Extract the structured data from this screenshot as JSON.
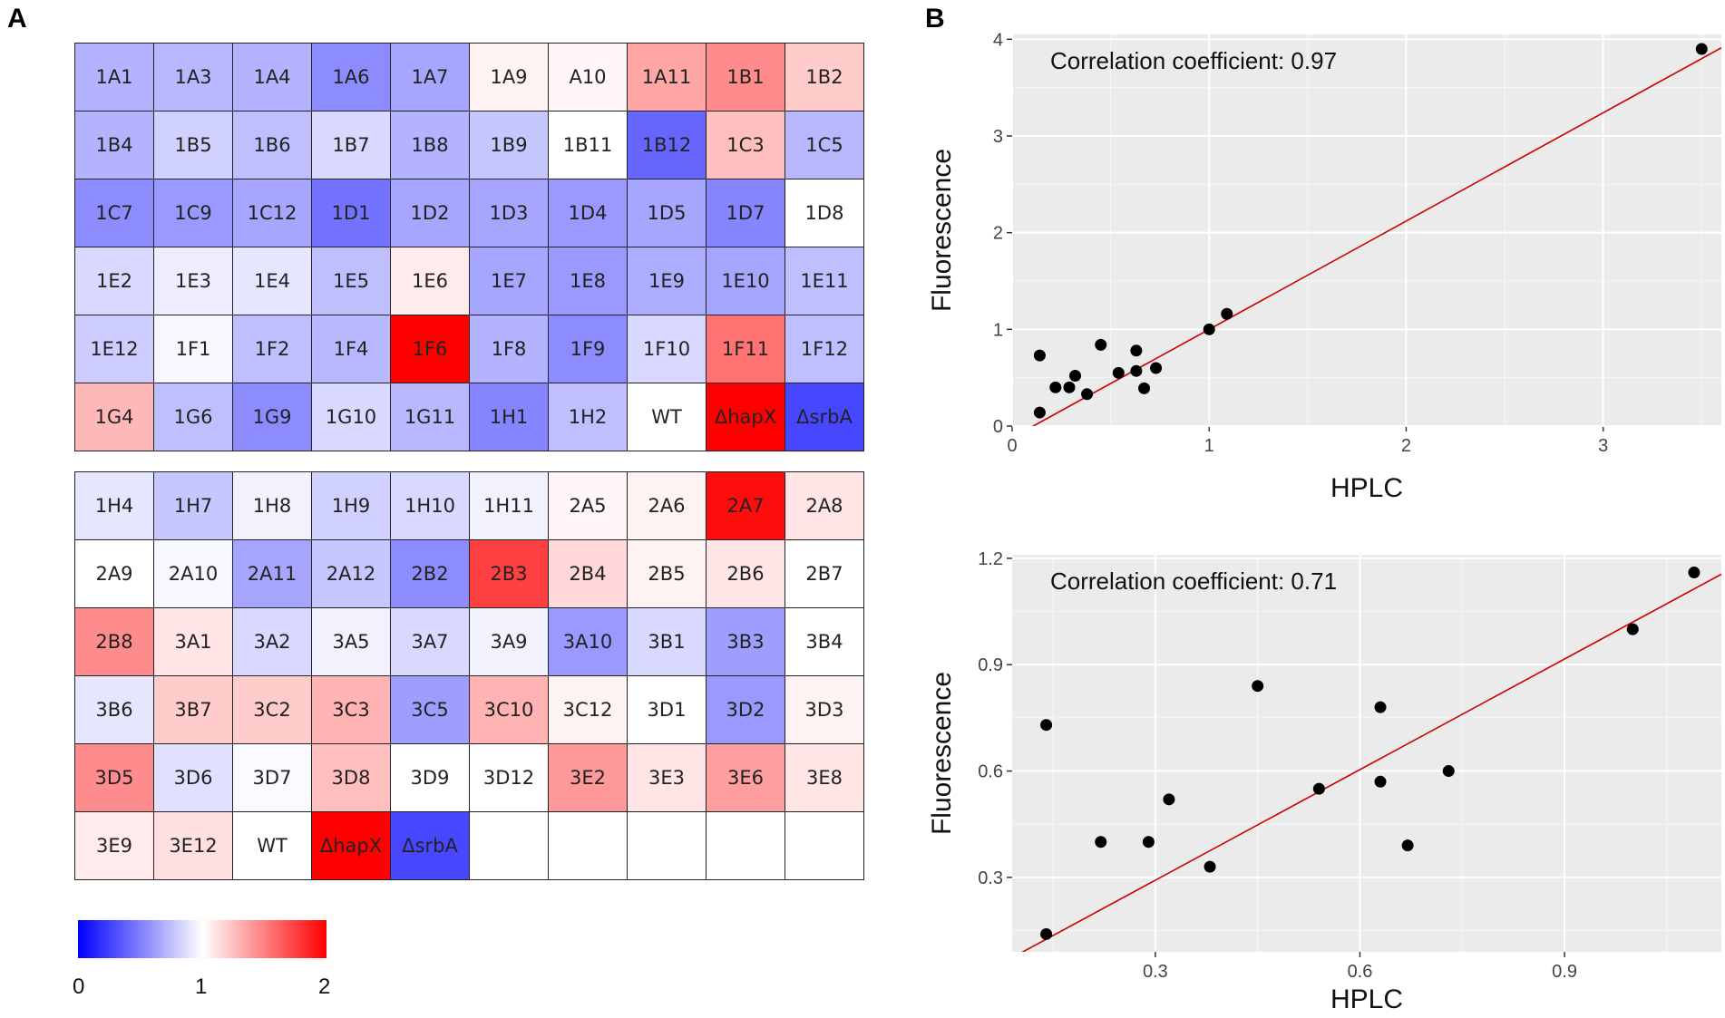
{
  "panel_labels": {
    "a": "A",
    "b": "B"
  },
  "colorscale": {
    "low": "#0000ff",
    "mid": "#ffffff",
    "high": "#ff0000",
    "min": 0,
    "max": 2,
    "ticks": [
      "0",
      "1",
      "2"
    ]
  },
  "heatmap_top": {
    "rows": [
      [
        {
          "label": "1A1",
          "value": 0.7
        },
        {
          "label": "1A3",
          "value": 0.72
        },
        {
          "label": "1A4",
          "value": 0.7
        },
        {
          "label": "1A6",
          "value": 0.55
        },
        {
          "label": "1A7",
          "value": 0.65
        },
        {
          "label": "1A9",
          "value": 1.05
        },
        {
          "label": "A10",
          "value": 1.03
        },
        {
          "label": "1A11",
          "value": 1.35
        },
        {
          "label": "1B1",
          "value": 1.45
        },
        {
          "label": "1B2",
          "value": 1.2
        }
      ],
      [
        {
          "label": "1B4",
          "value": 0.7
        },
        {
          "label": "1B5",
          "value": 0.82
        },
        {
          "label": "1B6",
          "value": 0.75
        },
        {
          "label": "1B7",
          "value": 0.85
        },
        {
          "label": "1B8",
          "value": 0.7
        },
        {
          "label": "1B9",
          "value": 0.78
        },
        {
          "label": "1B11",
          "value": 1.0
        },
        {
          "label": "1B12",
          "value": 0.4
        },
        {
          "label": "1C3",
          "value": 1.25
        },
        {
          "label": "1C5",
          "value": 0.72
        }
      ],
      [
        {
          "label": "1C7",
          "value": 0.55
        },
        {
          "label": "1C9",
          "value": 0.6
        },
        {
          "label": "1C12",
          "value": 0.65
        },
        {
          "label": "1D1",
          "value": 0.45
        },
        {
          "label": "1D2",
          "value": 0.65
        },
        {
          "label": "1D3",
          "value": 0.65
        },
        {
          "label": "1D4",
          "value": 0.6
        },
        {
          "label": "1D5",
          "value": 0.65
        },
        {
          "label": "1D7",
          "value": 0.52
        },
        {
          "label": "1D8",
          "value": 1.0
        }
      ],
      [
        {
          "label": "1E2",
          "value": 0.85
        },
        {
          "label": "1E3",
          "value": 0.93
        },
        {
          "label": "1E4",
          "value": 0.9
        },
        {
          "label": "1E5",
          "value": 0.75
        },
        {
          "label": "1E6",
          "value": 1.08
        },
        {
          "label": "1E7",
          "value": 0.65
        },
        {
          "label": "1E8",
          "value": 0.6
        },
        {
          "label": "1E9",
          "value": 0.68
        },
        {
          "label": "1E10",
          "value": 0.65
        },
        {
          "label": "1E11",
          "value": 0.75
        }
      ],
      [
        {
          "label": "1E12",
          "value": 0.8
        },
        {
          "label": "1F1",
          "value": 0.97
        },
        {
          "label": "1F2",
          "value": 0.75
        },
        {
          "label": "1F4",
          "value": 0.72
        },
        {
          "label": "1F6",
          "value": 2.0
        },
        {
          "label": "1F8",
          "value": 0.7
        },
        {
          "label": "1F9",
          "value": 0.55
        },
        {
          "label": "1F10",
          "value": 0.85
        },
        {
          "label": "1F11",
          "value": 1.55
        },
        {
          "label": "1F12",
          "value": 0.75
        }
      ],
      [
        {
          "label": "1G4",
          "value": 1.28
        },
        {
          "label": "1G6",
          "value": 0.75
        },
        {
          "label": "1G9",
          "value": 0.55
        },
        {
          "label": "1G10",
          "value": 0.85
        },
        {
          "label": "1G11",
          "value": 0.72
        },
        {
          "label": "1H1",
          "value": 0.52
        },
        {
          "label": "1H2",
          "value": 0.75
        },
        {
          "label": "WT",
          "value": 1.0
        },
        {
          "label": "ΔhapX",
          "value": 2.0
        },
        {
          "label": "ΔsrbA",
          "value": 0.28
        }
      ]
    ]
  },
  "heatmap_bottom": {
    "rows": [
      [
        {
          "label": "1H4",
          "value": 0.9
        },
        {
          "label": "1H7",
          "value": 0.78
        },
        {
          "label": "1H8",
          "value": 0.95
        },
        {
          "label": "1H9",
          "value": 0.82
        },
        {
          "label": "1H10",
          "value": 0.85
        },
        {
          "label": "1H11",
          "value": 0.95
        },
        {
          "label": "2A5",
          "value": 1.03
        },
        {
          "label": "2A6",
          "value": 1.05
        },
        {
          "label": "2A7",
          "value": 1.95
        },
        {
          "label": "2A8",
          "value": 1.1
        }
      ],
      [
        {
          "label": "2A9",
          "value": 1.0
        },
        {
          "label": "2A10",
          "value": 0.97
        },
        {
          "label": "2A11",
          "value": 0.65
        },
        {
          "label": "2A12",
          "value": 0.78
        },
        {
          "label": "2B2",
          "value": 0.55
        },
        {
          "label": "2B3",
          "value": 1.75
        },
        {
          "label": "2B4",
          "value": 1.15
        },
        {
          "label": "2B5",
          "value": 1.05
        },
        {
          "label": "2B6",
          "value": 1.1
        },
        {
          "label": "2B7",
          "value": 1.0
        }
      ],
      [
        {
          "label": "2B8",
          "value": 1.45
        },
        {
          "label": "3A1",
          "value": 1.1
        },
        {
          "label": "3A2",
          "value": 0.85
        },
        {
          "label": "3A5",
          "value": 0.95
        },
        {
          "label": "3A7",
          "value": 0.85
        },
        {
          "label": "3A9",
          "value": 0.95
        },
        {
          "label": "3A10",
          "value": 0.6
        },
        {
          "label": "3B1",
          "value": 0.85
        },
        {
          "label": "3B3",
          "value": 0.62
        },
        {
          "label": "3B4",
          "value": 1.0
        }
      ],
      [
        {
          "label": "3B6",
          "value": 0.9
        },
        {
          "label": "3B7",
          "value": 1.2
        },
        {
          "label": "3C2",
          "value": 1.2
        },
        {
          "label": "3C3",
          "value": 1.3
        },
        {
          "label": "3C5",
          "value": 0.62
        },
        {
          "label": "3C10",
          "value": 1.3
        },
        {
          "label": "3C12",
          "value": 1.05
        },
        {
          "label": "3D1",
          "value": 1.0
        },
        {
          "label": "3D2",
          "value": 0.6
        },
        {
          "label": "3D3",
          "value": 1.05
        }
      ],
      [
        {
          "label": "3D5",
          "value": 1.45
        },
        {
          "label": "3D6",
          "value": 0.88
        },
        {
          "label": "3D7",
          "value": 0.98
        },
        {
          "label": "3D8",
          "value": 1.25
        },
        {
          "label": "3D9",
          "value": 1.0
        },
        {
          "label": "3D12",
          "value": 1.0
        },
        {
          "label": "3E2",
          "value": 1.4
        },
        {
          "label": "3E3",
          "value": 1.1
        },
        {
          "label": "3E6",
          "value": 1.38
        },
        {
          "label": "3E8",
          "value": 1.1
        }
      ],
      [
        {
          "label": "3E9",
          "value": 1.08
        },
        {
          "label": "3E12",
          "value": 1.12
        },
        {
          "label": "WT",
          "value": 1.0
        },
        {
          "label": "ΔhapX",
          "value": 2.0
        },
        {
          "label": "ΔsrbA",
          "value": 0.28
        },
        {
          "label": "",
          "value": 1.0
        },
        {
          "label": "",
          "value": 1.0
        },
        {
          "label": "",
          "value": 1.0
        },
        {
          "label": "",
          "value": 1.0
        },
        {
          "label": "",
          "value": 1.0
        }
      ]
    ]
  },
  "chart_data": [
    {
      "type": "scatter",
      "title": "",
      "annotation": "Correlation coefficient: 0.97",
      "xlabel": "HPLC",
      "ylabel": "Fluorescence",
      "xlim": [
        0,
        3.6
      ],
      "ylim": [
        0,
        4.05
      ],
      "xticks": [
        0,
        1,
        2,
        3
      ],
      "yticks": [
        0,
        1,
        2,
        3,
        4
      ],
      "grid": true,
      "points": [
        {
          "x": 0.14,
          "y": 0.14
        },
        {
          "x": 0.14,
          "y": 0.73
        },
        {
          "x": 0.22,
          "y": 0.4
        },
        {
          "x": 0.29,
          "y": 0.4
        },
        {
          "x": 0.32,
          "y": 0.52
        },
        {
          "x": 0.38,
          "y": 0.33
        },
        {
          "x": 0.45,
          "y": 0.84
        },
        {
          "x": 0.54,
          "y": 0.55
        },
        {
          "x": 0.63,
          "y": 0.57
        },
        {
          "x": 0.63,
          "y": 0.78
        },
        {
          "x": 0.67,
          "y": 0.39
        },
        {
          "x": 0.73,
          "y": 0.6
        },
        {
          "x": 1.0,
          "y": 1.0
        },
        {
          "x": 1.09,
          "y": 1.16
        },
        {
          "x": 3.5,
          "y": 3.9
        }
      ],
      "fit_line": {
        "slope": 1.12,
        "intercept": -0.12,
        "color": "#cc0000"
      }
    },
    {
      "type": "scatter",
      "title": "",
      "annotation": "Correlation coefficient: 0.71",
      "xlabel": "HPLC",
      "ylabel": "Fluorescence",
      "xlim": [
        0.09,
        1.13
      ],
      "ylim": [
        0.09,
        1.21
      ],
      "xticks": [
        0.3,
        0.6,
        0.9
      ],
      "yticks": [
        0.3,
        0.6,
        0.9,
        1.2
      ],
      "grid": true,
      "points": [
        {
          "x": 0.14,
          "y": 0.14
        },
        {
          "x": 0.14,
          "y": 0.73
        },
        {
          "x": 0.22,
          "y": 0.4
        },
        {
          "x": 0.29,
          "y": 0.4
        },
        {
          "x": 0.32,
          "y": 0.52
        },
        {
          "x": 0.38,
          "y": 0.33
        },
        {
          "x": 0.45,
          "y": 0.84
        },
        {
          "x": 0.54,
          "y": 0.55
        },
        {
          "x": 0.63,
          "y": 0.57
        },
        {
          "x": 0.63,
          "y": 0.78
        },
        {
          "x": 0.67,
          "y": 0.39
        },
        {
          "x": 0.73,
          "y": 0.6
        },
        {
          "x": 1.0,
          "y": 1.0
        },
        {
          "x": 1.09,
          "y": 1.16
        }
      ],
      "fit_line": {
        "slope": 1.04,
        "intercept": -0.02,
        "color": "#cc0000"
      }
    }
  ]
}
